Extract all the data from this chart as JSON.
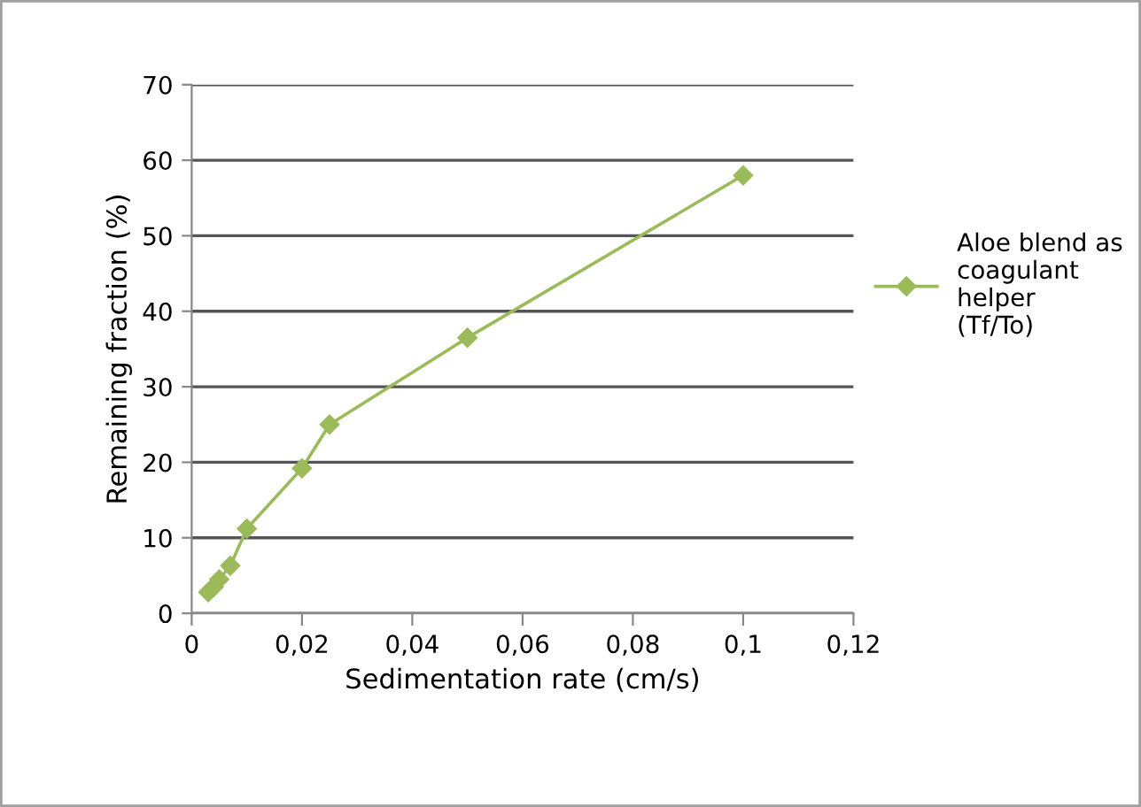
{
  "chart_data": {
    "type": "line",
    "xlabel": "Sedimentation rate (cm/s)",
    "ylabel": "Remaining fraction (%)",
    "x": [
      0.003,
      0.004,
      0.005,
      0.007,
      0.01,
      0.02,
      0.025,
      0.05,
      0.1
    ],
    "series": [
      {
        "name": "Aloe blend as\ncoagulant\nhelper\n(Tf/To)",
        "color": "#9bbb59",
        "values": [
          2.8,
          3.5,
          4.5,
          6.3,
          11.2,
          19.2,
          25,
          36.5,
          58
        ]
      }
    ],
    "xlim": [
      0,
      0.12
    ],
    "xticks": [
      0,
      {
        "value": 0.02,
        "label": "0,02"
      },
      {
        "value": 0.04,
        "label": "0,04"
      },
      {
        "value": 0.06,
        "label": "0,06"
      },
      {
        "value": 0.08,
        "label": "0,08"
      },
      {
        "value": 0.1,
        "label": "0,1"
      },
      {
        "value": 0.12,
        "label": "0,12"
      }
    ],
    "ylim": [
      0,
      70
    ],
    "yticks": [
      0,
      10,
      20,
      30,
      40,
      50,
      60,
      70
    ],
    "grid": "y",
    "legend": "right",
    "marker": "diamond",
    "line_style": "solid"
  }
}
